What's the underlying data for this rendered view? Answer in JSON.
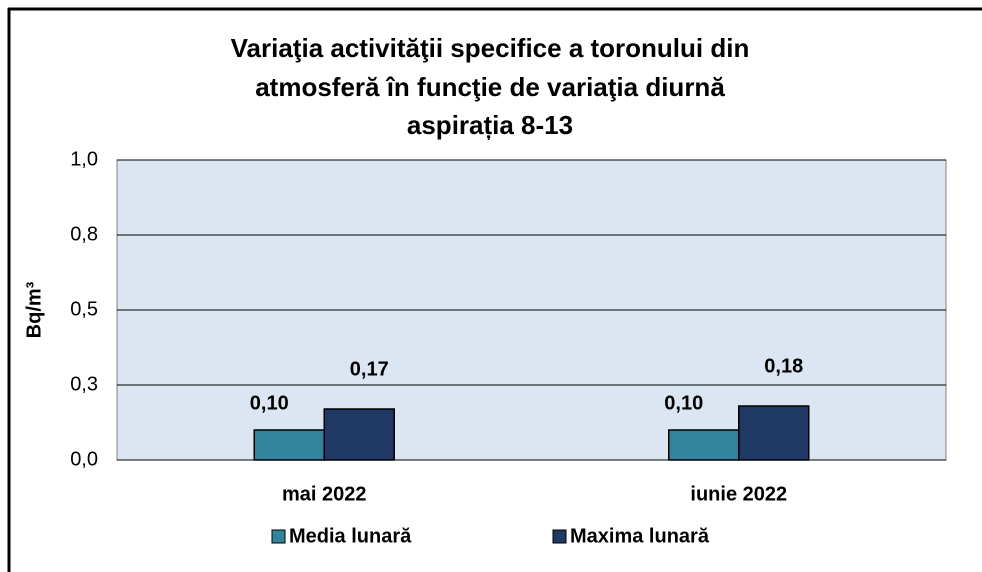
{
  "chart_data": {
    "type": "bar",
    "title": [
      "Variaţia activităţii specifice a toronului  din",
      "atmosferă în funcţie de variaţia diurnă",
      "aspirația 8-13"
    ],
    "y_label": "Bq/m³",
    "categories": [
      "mai 2022",
      "iunie 2022"
    ],
    "series": [
      {
        "name": "Media lunară",
        "color": "#31849b",
        "values": [
          0.1,
          0.1
        ],
        "value_labels": [
          "0,10",
          "0,10"
        ]
      },
      {
        "name": "Maxima lunară",
        "color": "#1f3864",
        "values": [
          0.17,
          0.18
        ],
        "value_labels": [
          "0,17",
          "0,18"
        ]
      }
    ],
    "ylim": [
      0,
      1
    ],
    "yticks": [
      {
        "value": 0,
        "label": "0,0"
      },
      {
        "value": 0.25,
        "label": "0,3"
      },
      {
        "value": 0.5,
        "label": "0,5"
      },
      {
        "value": 0.75,
        "label": "0,8"
      },
      {
        "value": 1,
        "label": "1,0"
      }
    ],
    "grid": true,
    "legend": "bottom"
  }
}
